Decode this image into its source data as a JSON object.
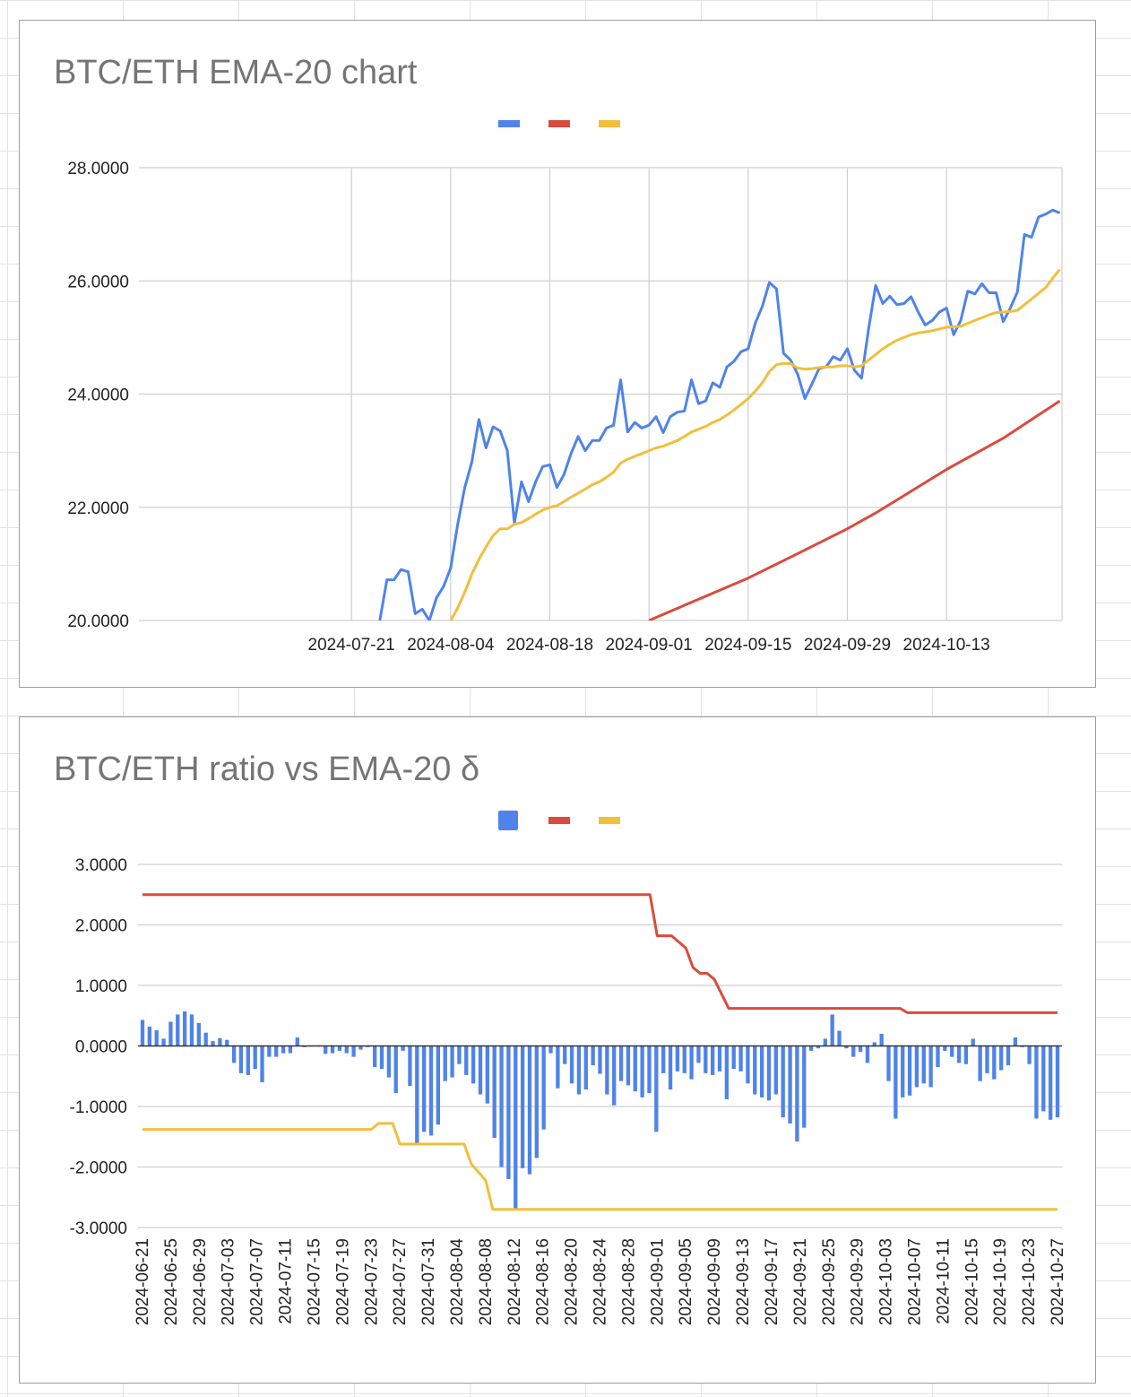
{
  "chart_data": [
    {
      "type": "line",
      "title": "BTC/ETH EMA-20 chart",
      "xlabel": "",
      "ylabel": "",
      "ylim": [
        20,
        28
      ],
      "yticks": [
        "20.0000",
        "22.0000",
        "24.0000",
        "26.0000",
        "28.0000"
      ],
      "xticks": [
        "2024-07-21",
        "2024-08-04",
        "2024-08-18",
        "2024-09-01",
        "2024-09-15",
        "2024-09-29",
        "2024-10-13"
      ],
      "x_start": "2024-06-21",
      "x_end": "2024-10-27",
      "grid": true,
      "legend": "top-center",
      "series": [
        {
          "color": "#4f83ea",
          "x": [
            "2024-07-25",
            "2024-07-26",
            "2024-07-27",
            "2024-07-28",
            "2024-07-29",
            "2024-07-30",
            "2024-07-31",
            "2024-08-01",
            "2024-08-02",
            "2024-08-03",
            "2024-08-04",
            "2024-08-05",
            "2024-08-06",
            "2024-08-07",
            "2024-08-08",
            "2024-08-09",
            "2024-08-10",
            "2024-08-11",
            "2024-08-12",
            "2024-08-13",
            "2024-08-14",
            "2024-08-15",
            "2024-08-16",
            "2024-08-17",
            "2024-08-18",
            "2024-08-19",
            "2024-08-20",
            "2024-08-21",
            "2024-08-22",
            "2024-08-23",
            "2024-08-24",
            "2024-08-25",
            "2024-08-26",
            "2024-08-27",
            "2024-08-28",
            "2024-08-29",
            "2024-08-30",
            "2024-08-31",
            "2024-09-01",
            "2024-09-02",
            "2024-09-03",
            "2024-09-04",
            "2024-09-05",
            "2024-09-06",
            "2024-09-07",
            "2024-09-08",
            "2024-09-09",
            "2024-09-10",
            "2024-09-11",
            "2024-09-12",
            "2024-09-13",
            "2024-09-14",
            "2024-09-15",
            "2024-09-16",
            "2024-09-17",
            "2024-09-18",
            "2024-09-19",
            "2024-09-20",
            "2024-09-21",
            "2024-09-22",
            "2024-09-23",
            "2024-09-24",
            "2024-09-25",
            "2024-09-26",
            "2024-09-27",
            "2024-09-28",
            "2024-09-29",
            "2024-09-30",
            "2024-10-01",
            "2024-10-02",
            "2024-10-03",
            "2024-10-04",
            "2024-10-05",
            "2024-10-06",
            "2024-10-07",
            "2024-10-08",
            "2024-10-09",
            "2024-10-10",
            "2024-10-11",
            "2024-10-12",
            "2024-10-13",
            "2024-10-14",
            "2024-10-15",
            "2024-10-16",
            "2024-10-17",
            "2024-10-18",
            "2024-10-19",
            "2024-10-20",
            "2024-10-21",
            "2024-10-22",
            "2024-10-23",
            "2024-10-24",
            "2024-10-25",
            "2024-10-26",
            "2024-10-27",
            "2024-10-28",
            "2024-10-29"
          ],
          "values": [
            20.0,
            20.72,
            20.72,
            20.9,
            20.86,
            20.12,
            20.2,
            20.0,
            20.4,
            20.6,
            20.92,
            21.7,
            22.35,
            22.8,
            23.55,
            23.05,
            23.42,
            23.35,
            23.0,
            21.72,
            22.45,
            22.1,
            22.45,
            22.72,
            22.75,
            22.35,
            22.58,
            22.95,
            23.25,
            23.0,
            23.18,
            23.18,
            23.4,
            23.45,
            24.25,
            23.33,
            23.5,
            23.4,
            23.45,
            23.6,
            23.32,
            23.6,
            23.68,
            23.7,
            24.25,
            23.83,
            23.88,
            24.2,
            24.12,
            24.48,
            24.58,
            24.75,
            24.8,
            25.25,
            25.55,
            25.97,
            25.86,
            24.72,
            24.6,
            24.35,
            23.92,
            24.18,
            24.45,
            24.48,
            24.66,
            24.6,
            24.8,
            24.42,
            24.28,
            25.15,
            25.92,
            25.6,
            25.73,
            25.58,
            25.6,
            25.72,
            25.45,
            25.22,
            25.3,
            25.45,
            25.52,
            25.05,
            25.3,
            25.82,
            25.77,
            25.95,
            25.79,
            25.79,
            25.28,
            25.52,
            25.8,
            26.82,
            26.77,
            27.13,
            27.18,
            27.25,
            27.2
          ]
        },
        {
          "color": "#d94c3d",
          "x": [
            "2024-09-01",
            "2024-09-15",
            "2024-09-21",
            "2024-09-29",
            "2024-10-03",
            "2024-10-13",
            "2024-10-21",
            "2024-10-29"
          ],
          "values": [
            20.0,
            20.75,
            21.12,
            21.62,
            21.9,
            22.67,
            23.22,
            23.88
          ]
        },
        {
          "color": "#f2bf3c",
          "x": [
            "2024-08-04",
            "2024-08-05",
            "2024-08-06",
            "2024-08-07",
            "2024-08-08",
            "2024-08-09",
            "2024-08-10",
            "2024-08-11",
            "2024-08-12",
            "2024-08-13",
            "2024-08-14",
            "2024-08-15",
            "2024-08-16",
            "2024-08-17",
            "2024-08-18",
            "2024-08-19",
            "2024-08-20",
            "2024-08-21",
            "2024-08-22",
            "2024-08-23",
            "2024-08-24",
            "2024-08-25",
            "2024-08-26",
            "2024-08-27",
            "2024-08-28",
            "2024-08-29",
            "2024-08-30",
            "2024-08-31",
            "2024-09-01",
            "2024-09-02",
            "2024-09-03",
            "2024-09-04",
            "2024-09-05",
            "2024-09-06",
            "2024-09-07",
            "2024-09-08",
            "2024-09-09",
            "2024-09-10",
            "2024-09-11",
            "2024-09-12",
            "2024-09-13",
            "2024-09-14",
            "2024-09-15",
            "2024-09-16",
            "2024-09-17",
            "2024-09-18",
            "2024-09-19",
            "2024-09-20",
            "2024-09-21",
            "2024-09-22",
            "2024-09-23",
            "2024-09-24",
            "2024-09-25",
            "2024-09-26",
            "2024-09-27",
            "2024-09-28",
            "2024-09-29",
            "2024-09-30",
            "2024-10-01",
            "2024-10-02",
            "2024-10-03",
            "2024-10-04",
            "2024-10-05",
            "2024-10-06",
            "2024-10-07",
            "2024-10-08",
            "2024-10-09",
            "2024-10-10",
            "2024-10-11",
            "2024-10-12",
            "2024-10-13",
            "2024-10-14",
            "2024-10-15",
            "2024-10-16",
            "2024-10-17",
            "2024-10-18",
            "2024-10-19",
            "2024-10-20",
            "2024-10-21",
            "2024-10-22",
            "2024-10-23",
            "2024-10-24",
            "2024-10-25",
            "2024-10-26",
            "2024-10-27",
            "2024-10-28",
            "2024-10-29"
          ],
          "values": [
            20.0,
            20.22,
            20.5,
            20.82,
            21.08,
            21.3,
            21.5,
            21.62,
            21.62,
            21.7,
            21.73,
            21.8,
            21.88,
            21.95,
            22.0,
            22.03,
            22.1,
            22.18,
            22.25,
            22.32,
            22.4,
            22.45,
            22.53,
            22.62,
            22.78,
            22.85,
            22.9,
            22.95,
            23.0,
            23.05,
            23.08,
            23.13,
            23.18,
            23.25,
            23.33,
            23.38,
            23.43,
            23.5,
            23.55,
            23.63,
            23.72,
            23.82,
            23.92,
            24.05,
            24.2,
            24.4,
            24.52,
            24.54,
            24.54,
            24.46,
            24.44,
            24.45,
            24.47,
            24.48,
            24.48,
            24.5,
            24.5,
            24.48,
            24.5,
            24.6,
            24.7,
            24.8,
            24.88,
            24.95,
            25.0,
            25.05,
            25.08,
            25.1,
            25.12,
            25.15,
            25.18,
            25.19,
            25.2,
            25.25,
            25.3,
            25.35,
            25.4,
            25.44,
            25.45,
            25.46,
            25.48,
            25.58,
            25.68,
            25.78,
            25.88,
            26.05,
            26.2
          ]
        }
      ]
    },
    {
      "type": "bar",
      "title": "BTC/ETH ratio vs EMA-20 δ",
      "xlabel": "",
      "ylabel": "",
      "ylim": [
        -3,
        3
      ],
      "yticks": [
        "-3.0000",
        "-2.0000",
        "-1.0000",
        "0.0000",
        "1.0000",
        "2.0000",
        "3.0000"
      ],
      "x_start": "2024-06-21",
      "x_end": "2024-10-27",
      "xticks": [
        "2024-06-21",
        "2024-06-25",
        "2024-06-29",
        "2024-07-03",
        "2024-07-07",
        "2024-07-11",
        "2024-07-15",
        "2024-07-19",
        "2024-07-23",
        "2024-07-27",
        "2024-07-31",
        "2024-08-04",
        "2024-08-08",
        "2024-08-12",
        "2024-08-16",
        "2024-08-20",
        "2024-08-24",
        "2024-08-28",
        "2024-09-01",
        "2024-09-05",
        "2024-09-09",
        "2024-09-13",
        "2024-09-17",
        "2024-09-21",
        "2024-09-25",
        "2024-09-29",
        "2024-10-03",
        "2024-10-07",
        "2024-10-11",
        "2024-10-15",
        "2024-10-19",
        "2024-10-23",
        "2024-10-27"
      ],
      "grid": true,
      "legend": "top-center",
      "bars": {
        "color": "#4f83ea",
        "values": [
          0.43,
          0.32,
          0.26,
          0.12,
          0.4,
          0.52,
          0.57,
          0.52,
          0.38,
          0.22,
          0.08,
          0.13,
          0.1,
          -0.28,
          -0.45,
          -0.48,
          -0.38,
          -0.6,
          -0.18,
          -0.18,
          -0.12,
          -0.12,
          0.14,
          -0.02,
          -0.01,
          -0.01,
          -0.13,
          -0.12,
          -0.08,
          -0.12,
          -0.18,
          -0.06,
          -0.02,
          -0.35,
          -0.38,
          -0.52,
          -0.78,
          -0.08,
          -0.66,
          -1.6,
          -1.42,
          -1.48,
          -1.3,
          -0.58,
          -0.52,
          -0.3,
          -0.48,
          -0.62,
          -0.8,
          -0.95,
          -1.52,
          -2.0,
          -2.2,
          -2.7,
          -2.02,
          -2.12,
          -1.85,
          -1.38,
          -0.12,
          -0.7,
          -0.3,
          -0.62,
          -0.8,
          -0.72,
          -0.32,
          -0.46,
          -0.8,
          -0.98,
          -0.58,
          -0.65,
          -0.75,
          -0.85,
          -0.78,
          -1.42,
          -0.45,
          -0.72,
          -0.42,
          -0.45,
          -0.55,
          -0.28,
          -0.45,
          -0.48,
          -0.42,
          -0.88,
          -0.38,
          -0.42,
          -0.62,
          -0.8,
          -0.85,
          -0.9,
          -0.8,
          -1.18,
          -1.28,
          -1.58,
          -1.35,
          -0.08,
          -0.04,
          0.12,
          0.52,
          0.25,
          -0.04,
          -0.18,
          -0.1,
          -0.28,
          0.06,
          0.2,
          -0.58,
          -1.2,
          -0.85,
          -0.82,
          -0.68,
          -0.62,
          -0.68,
          -0.35,
          -0.08,
          -0.18,
          -0.28,
          -0.3,
          0.12,
          -0.58,
          -0.45,
          -0.55,
          -0.4,
          -0.32,
          0.14,
          -0.02,
          -0.3,
          -1.2,
          -1.08,
          -1.22,
          -1.18
        ]
      },
      "series": [
        {
          "color": "#d94c3d",
          "x": [
            "2024-06-21",
            "2024-08-31",
            "2024-09-01",
            "2024-09-03",
            "2024-09-05",
            "2024-09-06",
            "2024-09-07",
            "2024-09-08",
            "2024-09-09",
            "2024-09-11",
            "2024-10-05",
            "2024-10-06",
            "2024-10-27"
          ],
          "values": [
            2.5,
            2.5,
            1.82,
            1.82,
            1.62,
            1.3,
            1.2,
            1.2,
            1.1,
            0.62,
            0.62,
            0.55,
            0.55
          ]
        },
        {
          "color": "#f2bf3c",
          "x": [
            "2024-06-21",
            "2024-07-23",
            "2024-07-24",
            "2024-07-26",
            "2024-07-27",
            "2024-08-05",
            "2024-08-06",
            "2024-08-08",
            "2024-08-09",
            "2024-10-27"
          ],
          "values": [
            -1.38,
            -1.38,
            -1.28,
            -1.28,
            -1.62,
            -1.62,
            -1.95,
            -2.22,
            -2.7,
            -2.7
          ]
        }
      ]
    }
  ]
}
